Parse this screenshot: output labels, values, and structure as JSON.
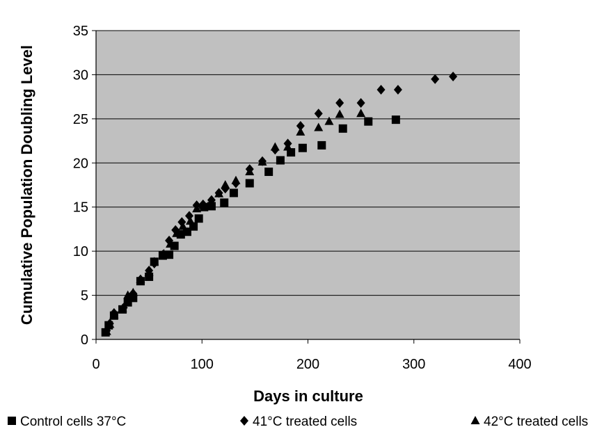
{
  "chart_data": {
    "type": "scatter",
    "title": "",
    "xlabel": "Days in culture",
    "ylabel": "Cumulative Population Doubling Level",
    "xlim": [
      0,
      400
    ],
    "ylim": [
      0,
      35
    ],
    "x_ticks": [
      0,
      100,
      200,
      300,
      400
    ],
    "y_ticks": [
      0,
      5,
      10,
      15,
      20,
      25,
      30,
      35
    ],
    "grid": "horizontal",
    "legend_position": "bottom",
    "plot_background": "#c0c0c0",
    "series": [
      {
        "name": "Control cells 37°C",
        "marker": "square",
        "color": "#000000",
        "points": [
          [
            9,
            0.8
          ],
          [
            12,
            1.6
          ],
          [
            17,
            2.7
          ],
          [
            25,
            3.4
          ],
          [
            30,
            4.2
          ],
          [
            35,
            4.7
          ],
          [
            42,
            6.6
          ],
          [
            50,
            7.1
          ],
          [
            55,
            8.8
          ],
          [
            63,
            9.5
          ],
          [
            69,
            9.6
          ],
          [
            74,
            10.6
          ],
          [
            80,
            11.9
          ],
          [
            86,
            12.2
          ],
          [
            92,
            12.8
          ],
          [
            97,
            13.7
          ],
          [
            102,
            15.0
          ],
          [
            109,
            15.1
          ],
          [
            121,
            15.5
          ],
          [
            130,
            16.6
          ],
          [
            145,
            17.7
          ],
          [
            163,
            19.0
          ],
          [
            174,
            20.3
          ],
          [
            184,
            21.2
          ],
          [
            195,
            21.7
          ],
          [
            213,
            22.0
          ],
          [
            233,
            23.9
          ],
          [
            257,
            24.7
          ],
          [
            283,
            24.9
          ]
        ]
      },
      {
        "name": "41°C treated cells",
        "marker": "diamond",
        "color": "#000000",
        "points": [
          [
            10,
            1.0
          ],
          [
            13,
            1.8
          ],
          [
            17,
            3.0
          ],
          [
            26,
            3.6
          ],
          [
            31,
            4.6
          ],
          [
            35,
            5.2
          ],
          [
            42,
            6.8
          ],
          [
            50,
            7.8
          ],
          [
            55,
            8.6
          ],
          [
            63,
            9.6
          ],
          [
            69,
            11.2
          ],
          [
            75,
            12.4
          ],
          [
            81,
            13.3
          ],
          [
            88,
            14.0
          ],
          [
            95,
            15.2
          ],
          [
            101,
            15.3
          ],
          [
            109,
            15.8
          ],
          [
            116,
            16.6
          ],
          [
            122,
            17.1
          ],
          [
            132,
            17.7
          ],
          [
            145,
            19.3
          ],
          [
            157,
            20.2
          ],
          [
            169,
            21.5
          ],
          [
            181,
            22.2
          ],
          [
            193,
            24.2
          ],
          [
            210,
            25.6
          ],
          [
            230,
            26.8
          ],
          [
            250,
            26.8
          ],
          [
            269,
            28.3
          ],
          [
            285,
            28.3
          ],
          [
            320,
            29.5
          ],
          [
            337,
            29.8
          ]
        ]
      },
      {
        "name": "42°C treated cells",
        "marker": "triangle",
        "color": "#000000",
        "points": [
          [
            10,
            0.9
          ],
          [
            13,
            1.7
          ],
          [
            17,
            2.8
          ],
          [
            25,
            3.5
          ],
          [
            30,
            5.0
          ],
          [
            35,
            5.3
          ],
          [
            42,
            6.8
          ],
          [
            50,
            7.6
          ],
          [
            55,
            8.8
          ],
          [
            64,
            9.7
          ],
          [
            70,
            10.8
          ],
          [
            76,
            12.0
          ],
          [
            82,
            12.8
          ],
          [
            89,
            13.4
          ],
          [
            95,
            14.8
          ],
          [
            101,
            15.2
          ],
          [
            108,
            15.4
          ],
          [
            116,
            16.5
          ],
          [
            122,
            17.5
          ],
          [
            132,
            18.0
          ],
          [
            145,
            19.0
          ],
          [
            157,
            20.1
          ],
          [
            169,
            21.8
          ],
          [
            181,
            21.8
          ],
          [
            193,
            23.5
          ],
          [
            210,
            24.0
          ],
          [
            220,
            24.7
          ],
          [
            230,
            25.5
          ],
          [
            250,
            25.6
          ]
        ]
      }
    ]
  }
}
